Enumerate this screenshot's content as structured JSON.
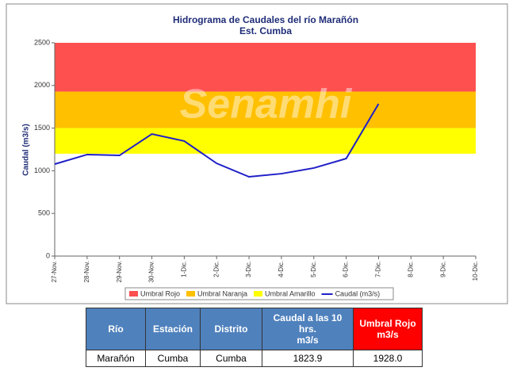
{
  "chart_data": {
    "type": "line",
    "title": "Hidrograma de Caudales del río Marañón",
    "subtitle": "Est. Cumba",
    "watermark": "Senamhi",
    "y_label": "Caudal (m3/s)",
    "categories": [
      "27-Nov.",
      "28-Nov.",
      "29-Nov.",
      "30-Nov.",
      "1-Dic.",
      "2-Dic.",
      "3-Dic.",
      "4-Dic.",
      "5-Dic.",
      "6-Dic.",
      "7-Dic.",
      "8-Dic.",
      "9-Dic.",
      "10-Dic."
    ],
    "bands": [
      {
        "name": "Umbral Rojo",
        "color": "#ff5050",
        "lower": 1928
      },
      {
        "name": "Umbral Naranja",
        "color": "#ffc000",
        "lower": 1500
      },
      {
        "name": "Umbral Amarillo",
        "color": "#ffff00",
        "lower": 1200
      }
    ],
    "series": [
      {
        "name": "Caudal (m3/s)",
        "color": "#1f1fc8",
        "values": [
          1078,
          1190,
          1180,
          1431,
          1348,
          1087,
          929,
          966,
          1032,
          1143,
          1784,
          null,
          null,
          null
        ]
      }
    ],
    "ylim": [
      0,
      2500
    ],
    "yticks": [
      0,
      500,
      1000,
      1500,
      2000,
      2500
    ]
  },
  "table": {
    "headers": [
      [
        "Río"
      ],
      [
        "Estación"
      ],
      [
        "Distrito"
      ],
      [
        "Caudal a las 10 hrs.",
        "m3/s"
      ],
      [
        "Umbral Rojo",
        "m3/s"
      ]
    ],
    "rows": [
      [
        "Marañón",
        "Cumba",
        "Cumba",
        "1823.9",
        "1928.0"
      ]
    ]
  }
}
